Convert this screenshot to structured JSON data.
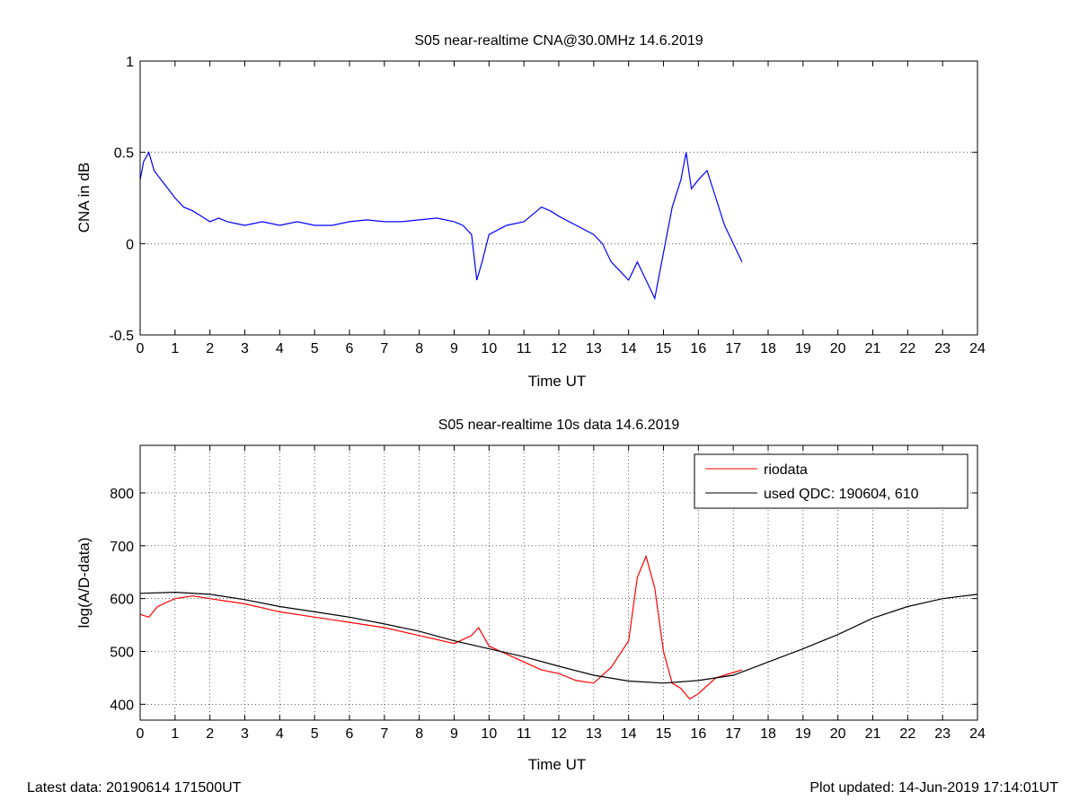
{
  "chart_data": [
    {
      "type": "line",
      "title": "S05 near-realtime CNA@30.0MHz 14.6.2019",
      "xlabel": "Time UT",
      "ylabel": "CNA in dB",
      "xlim": [
        0,
        24
      ],
      "ylim": [
        -0.5,
        1
      ],
      "xticks": [
        0,
        1,
        2,
        3,
        4,
        5,
        6,
        7,
        8,
        9,
        10,
        11,
        12,
        13,
        14,
        15,
        16,
        17,
        18,
        19,
        20,
        21,
        22,
        23,
        24
      ],
      "yticks": [
        -0.5,
        0,
        0.5,
        1
      ],
      "grid": "dotted, y only",
      "series": [
        {
          "color": "#0000ff",
          "x": [
            0,
            0.1,
            0.25,
            0.4,
            0.6,
            0.8,
            1.0,
            1.25,
            1.5,
            1.75,
            2.0,
            2.25,
            2.5,
            3.0,
            3.5,
            4.0,
            4.5,
            5.0,
            5.5,
            6.0,
            6.5,
            7.0,
            7.5,
            8.0,
            8.5,
            9.0,
            9.25,
            9.5,
            9.65,
            9.8,
            10.0,
            10.5,
            11.0,
            11.5,
            11.75,
            12.0,
            12.5,
            13.0,
            13.25,
            13.5,
            13.75,
            14.0,
            14.25,
            14.5,
            14.75,
            15.0,
            15.25,
            15.5,
            15.65,
            15.8,
            16.0,
            16.25,
            16.5,
            16.75,
            17.0,
            17.25
          ],
          "y": [
            0.35,
            0.45,
            0.5,
            0.4,
            0.35,
            0.3,
            0.25,
            0.2,
            0.18,
            0.15,
            0.12,
            0.14,
            0.12,
            0.1,
            0.12,
            0.1,
            0.12,
            0.1,
            0.1,
            0.12,
            0.13,
            0.12,
            0.12,
            0.13,
            0.14,
            0.12,
            0.1,
            0.05,
            -0.2,
            -0.1,
            0.05,
            0.1,
            0.12,
            0.2,
            0.18,
            0.15,
            0.1,
            0.05,
            0.0,
            -0.1,
            -0.15,
            -0.2,
            -0.1,
            -0.2,
            -0.3,
            -0.05,
            0.2,
            0.35,
            0.5,
            0.3,
            0.35,
            0.4,
            0.25,
            0.1,
            0.0,
            -0.1
          ]
        }
      ]
    },
    {
      "type": "line",
      "title": "S05 near-realtime 10s data 14.6.2019",
      "xlabel": "Time UT",
      "ylabel": "log(A/D-data)",
      "xlim": [
        0,
        24
      ],
      "ylim": [
        370,
        890
      ],
      "xticks": [
        0,
        1,
        2,
        3,
        4,
        5,
        6,
        7,
        8,
        9,
        10,
        11,
        12,
        13,
        14,
        15,
        16,
        17,
        18,
        19,
        20,
        21,
        22,
        23,
        24
      ],
      "yticks": [
        400,
        500,
        600,
        700,
        800
      ],
      "grid": "dotted, x and y",
      "legend": "top-right",
      "series": [
        {
          "name": "riodata",
          "color": "#ff0000",
          "x": [
            0,
            0.25,
            0.5,
            1.0,
            1.5,
            2.0,
            2.5,
            3.0,
            4.0,
            5.0,
            6.0,
            7.0,
            8.0,
            9.0,
            9.5,
            9.7,
            10.0,
            10.5,
            11.0,
            11.5,
            12.0,
            12.5,
            13.0,
            13.5,
            14.0,
            14.25,
            14.5,
            14.75,
            15.0,
            15.25,
            15.5,
            15.75,
            16.0,
            16.5,
            17.0,
            17.25
          ],
          "y": [
            570,
            565,
            585,
            600,
            605,
            600,
            595,
            590,
            575,
            565,
            555,
            545,
            530,
            515,
            530,
            545,
            510,
            495,
            480,
            465,
            458,
            445,
            440,
            470,
            520,
            640,
            680,
            620,
            500,
            440,
            430,
            410,
            420,
            450,
            460,
            465
          ]
        },
        {
          "name": "used QDC: 190604, 610",
          "color": "#000000",
          "x": [
            0,
            1,
            2,
            3,
            4,
            5,
            6,
            7,
            8,
            9,
            10,
            11,
            12,
            13,
            14,
            15,
            16,
            17,
            18,
            19,
            20,
            21,
            22,
            23,
            24
          ],
          "y": [
            610,
            612,
            608,
            598,
            585,
            575,
            565,
            552,
            538,
            520,
            505,
            490,
            472,
            455,
            444,
            440,
            445,
            455,
            480,
            505,
            532,
            563,
            585,
            600,
            608
          ]
        }
      ]
    }
  ],
  "footer": {
    "latest_data": "Latest data: 20190614 171500UT",
    "plot_updated": "Plot updated: 14-Jun-2019 17:14:01UT"
  }
}
